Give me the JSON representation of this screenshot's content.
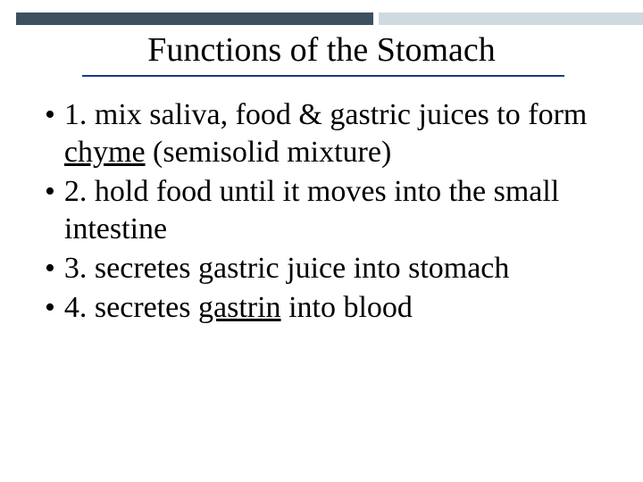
{
  "title": "Functions of the Stomach",
  "title_fontsize": 38,
  "title_underline_color": "#1a3a8a",
  "top_bar": {
    "dark_color": "#3b5161",
    "light_color": "#cfd9e0"
  },
  "body_fontsize": 34,
  "text_color": "#000000",
  "background_color": "#ffffff",
  "bullets": [
    {
      "pre": "1.  mix saliva, food & gastric juices to form ",
      "underlined": "chyme",
      "post": " (semisolid mixture)"
    },
    {
      "pre": "2. hold food until it moves into the small intestine",
      "underlined": "",
      "post": ""
    },
    {
      "pre": "3. secretes gastric juice into stomach",
      "underlined": "",
      "post": ""
    },
    {
      "pre": "4. secretes ",
      "underlined": "gastrin",
      "post": " into blood"
    }
  ]
}
